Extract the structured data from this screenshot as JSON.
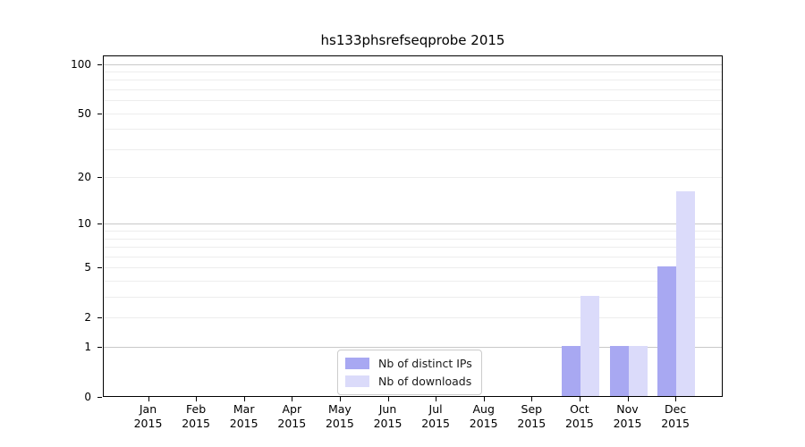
{
  "chart_data": {
    "type": "bar",
    "title": "hs133phsrefseqprobe 2015",
    "x_tick_year": "2015",
    "categories": [
      "Jan",
      "Feb",
      "Mar",
      "Apr",
      "May",
      "Jun",
      "Jul",
      "Aug",
      "Sep",
      "Oct",
      "Nov",
      "Dec"
    ],
    "series": [
      {
        "name": "Nb of distinct IPs",
        "color": "#a8a8f2",
        "values": [
          0,
          0,
          0,
          0,
          0,
          0,
          0,
          0,
          0,
          1,
          1,
          5
        ]
      },
      {
        "name": "Nb of downloads",
        "color": "#dbdbfa",
        "values": [
          0,
          0,
          0,
          0,
          0,
          0,
          0,
          0,
          0,
          3,
          1,
          16
        ]
      }
    ],
    "yscale": "log1p",
    "ylim": [
      0,
      140
    ],
    "y_ticks": [
      0,
      1,
      2,
      5,
      10,
      20,
      50,
      100
    ],
    "y_gridlines_major": [
      1,
      10,
      100
    ],
    "y_gridlines_minor": [
      2,
      3,
      4,
      5,
      6,
      7,
      8,
      9,
      20,
      30,
      40,
      50,
      60,
      70,
      80,
      90
    ],
    "grid": true,
    "legend_position": "lower center"
  },
  "colors": {
    "grid_major": "#c9c9c9",
    "grid_minor": "#ededed",
    "spine": "#000000",
    "background": "#ffffff",
    "bar_distinct_ips": "#a8a8f2",
    "bar_downloads": "#dbdbfa"
  }
}
